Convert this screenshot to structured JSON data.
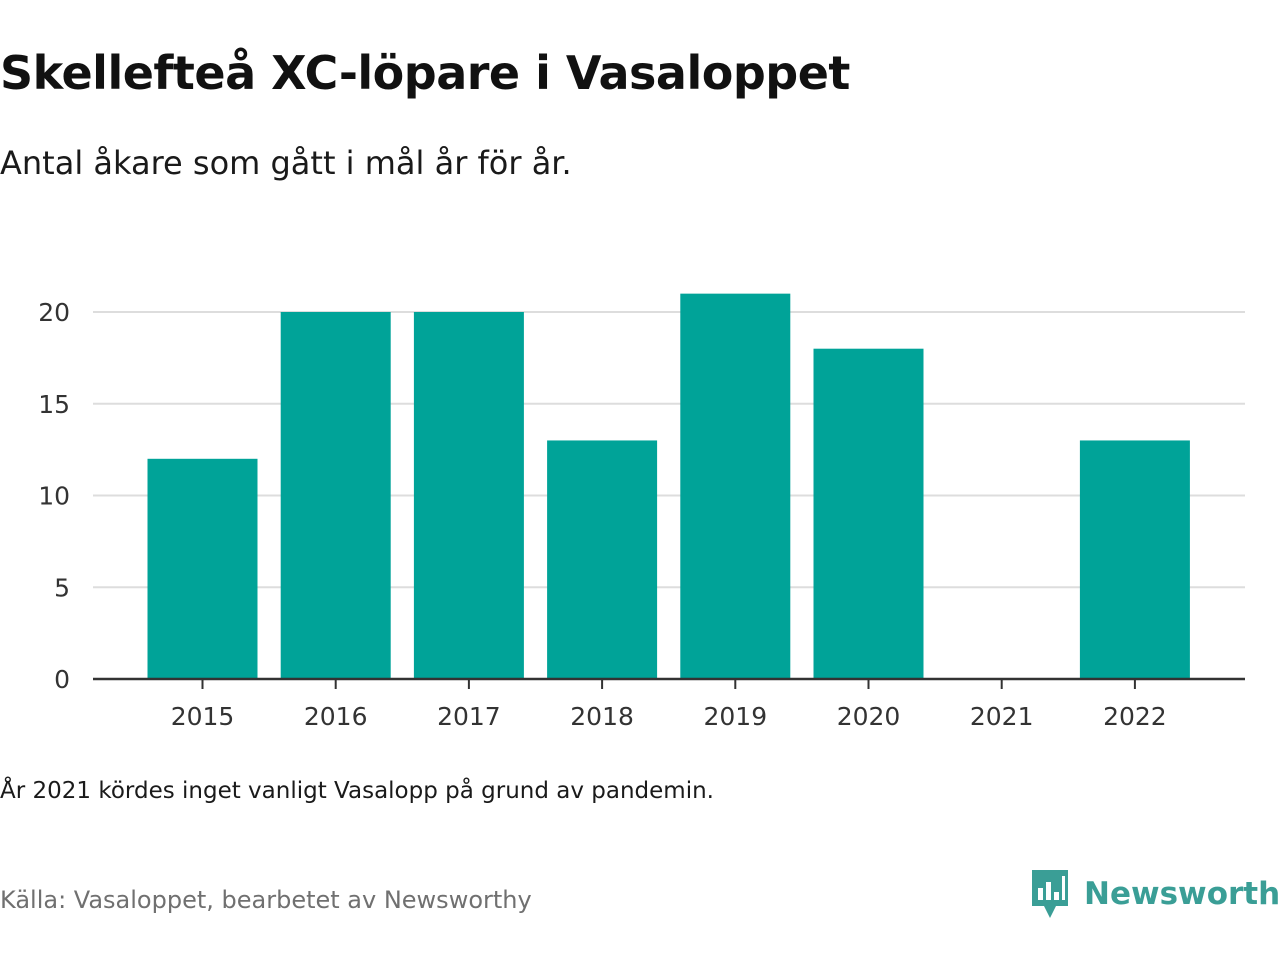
{
  "title": "Skellefteå XC-löpare i Vasaloppet",
  "subtitle": "Antal åkare som gått i mål år för år.",
  "note": "År 2021 kördes inget vanligt Vasalopp på grund av pandemin.",
  "source": "Källa: Vasaloppet, bearbetet av Newsworthy",
  "brand": {
    "name": "Newsworthy",
    "icon": "newsworthy-logo-icon",
    "color": "#3a9e96"
  },
  "chart_data": {
    "type": "bar",
    "title": "Skellefteå XC-löpare i Vasaloppet",
    "subtitle": "Antal åkare som gått i mål år för år.",
    "xlabel": "",
    "ylabel": "",
    "categories": [
      "2015",
      "2016",
      "2017",
      "2018",
      "2019",
      "2020",
      "2021",
      "2022"
    ],
    "values": [
      12,
      20,
      20,
      13,
      21,
      18,
      0,
      13
    ],
    "ylim": [
      0,
      21
    ],
    "yticks": [
      0,
      5,
      10,
      15,
      20
    ],
    "grid": true,
    "bar_color": "#00a398",
    "grid_color": "#dddddd",
    "axis_color": "#333333"
  }
}
